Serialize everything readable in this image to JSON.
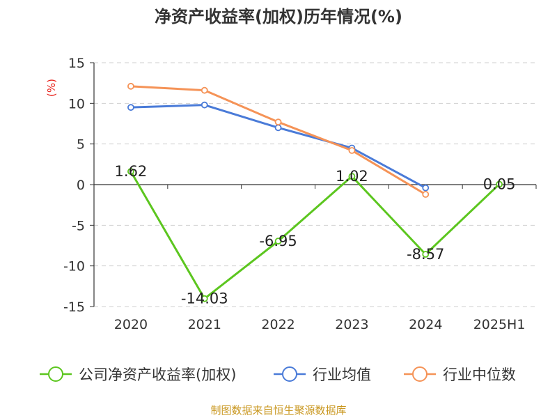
{
  "chart_data": {
    "type": "line",
    "title": "净资产收益率(加权)历年情况(%)",
    "ylabel": "(%)",
    "categories": [
      "2020",
      "2021",
      "2022",
      "2023",
      "2024",
      "2025H1"
    ],
    "ylim": [
      -15,
      15
    ],
    "yticks": [
      15,
      10,
      5,
      0,
      -5,
      -10,
      -15
    ],
    "grid": true,
    "legend_position": "bottom",
    "series": [
      {
        "name": "公司净资产收益率(加权)",
        "color": "#5cc61f",
        "values": [
          1.62,
          -14.03,
          -6.95,
          1.02,
          -8.57,
          0.05
        ],
        "labels": [
          "1.62",
          "-14.03",
          "-6.95",
          "1.02",
          "-8.57",
          "0.05"
        ]
      },
      {
        "name": "行业均值",
        "color": "#4a7bd8",
        "values": [
          9.5,
          9.8,
          7.0,
          4.5,
          -0.4,
          null
        ]
      },
      {
        "name": "行业中位数",
        "color": "#f59357",
        "values": [
          12.1,
          11.6,
          7.7,
          4.2,
          -1.2,
          null
        ]
      }
    ]
  },
  "source": "制图数据来自恒生聚源数据库"
}
